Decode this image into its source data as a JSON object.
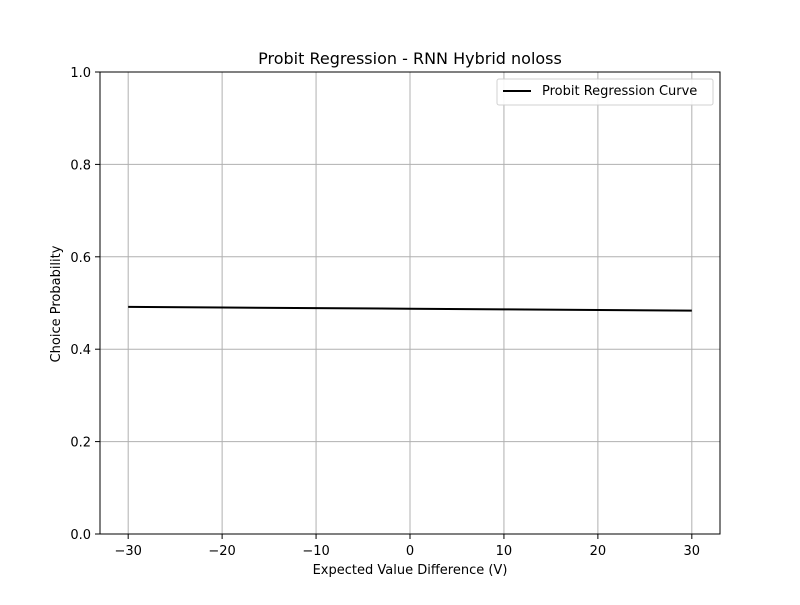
{
  "chart_data": {
    "type": "line",
    "title": "Probit Regression - RNN Hybrid noloss",
    "xlabel": "Expected Value Difference (V)",
    "ylabel": "Choice Probability",
    "xlim": [
      -33,
      33
    ],
    "ylim": [
      0.0,
      1.0
    ],
    "xticks": [
      -30,
      -20,
      -10,
      0,
      10,
      20,
      30
    ],
    "xtick_labels": [
      "−30",
      "−20",
      "−10",
      "0",
      "10",
      "20",
      "30"
    ],
    "yticks": [
      0.0,
      0.2,
      0.4,
      0.6,
      0.8,
      1.0
    ],
    "ytick_labels": [
      "0.0",
      "0.2",
      "0.4",
      "0.6",
      "0.8",
      "1.0"
    ],
    "grid": true,
    "legend_position": "top-right",
    "series": [
      {
        "name": "Probit Regression Curve",
        "color": "#000000",
        "x": [
          -30,
          -20,
          -10,
          0,
          10,
          20,
          30
        ],
        "y": [
          0.4915,
          0.4902,
          0.4889,
          0.4876,
          0.4862,
          0.4849,
          0.4835
        ]
      }
    ]
  }
}
